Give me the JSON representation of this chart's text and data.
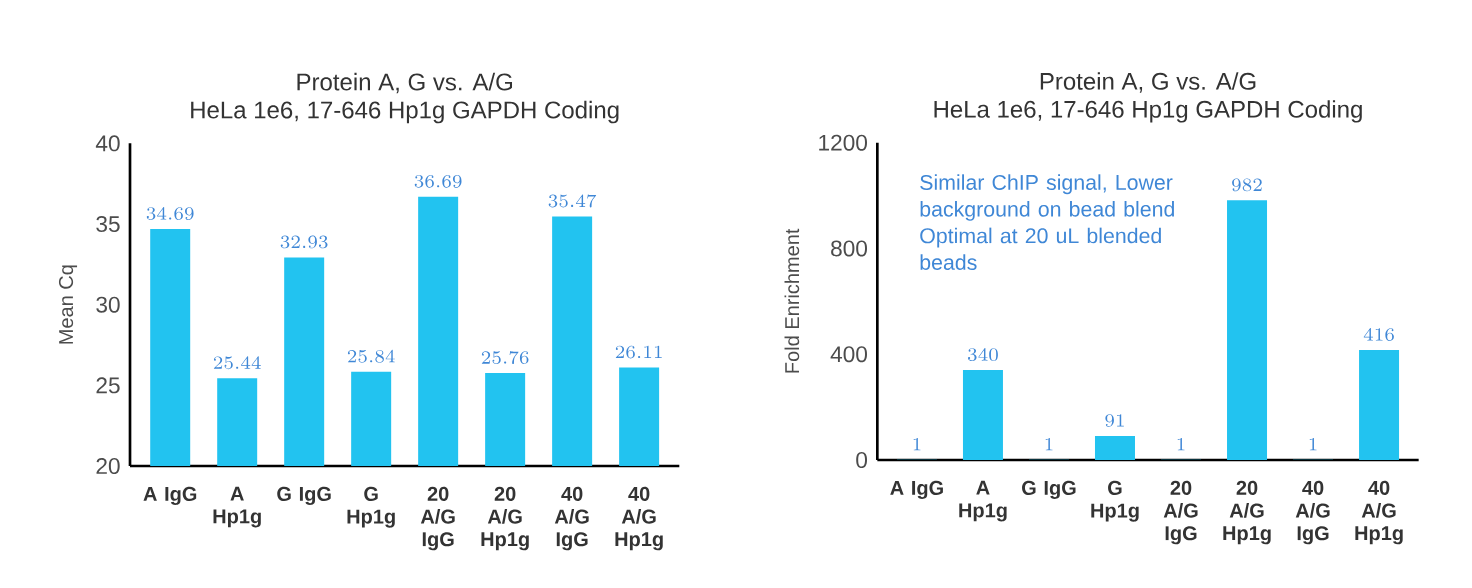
{
  "chart_data": [
    {
      "type": "bar",
      "title": "Protein A, G vs. A/G",
      "subtitle": "HeLa 1e6, 17-646 Hp1g GAPDH Coding",
      "ylabel": "Mean Cq",
      "categories": [
        "A IgG",
        "A Hp1g",
        "G IgG",
        "G Hp1g",
        "20 A/G IgG",
        "20 A/G Hp1g",
        "40 A/G IgG",
        "40 A/G Hp1g"
      ],
      "values": [
        34.69,
        25.44,
        32.93,
        25.84,
        36.69,
        25.76,
        35.47,
        26.11
      ],
      "color": "#22c3f0",
      "ylim": [
        20,
        40
      ],
      "yticks": [
        20,
        25,
        30,
        35,
        40
      ],
      "data_labels": true
    },
    {
      "type": "bar",
      "title": "Protein A, G vs. A/G",
      "subtitle": "HeLa 1e6, 17-646 Hp1g GAPDH Coding",
      "ylabel": "Fold Enrichment",
      "categories": [
        "A IgG",
        "A Hp1g",
        "G IgG",
        "G Hp1g",
        "20 A/G IgG",
        "20 A/G Hp1g",
        "40 A/G IgG",
        "40 A/G Hp1g"
      ],
      "values": [
        1,
        340,
        1,
        91,
        1,
        982,
        1,
        416
      ],
      "color": "#22c3f0",
      "ylim": [
        0,
        1200
      ],
      "yticks": [
        0,
        400,
        800,
        1200
      ],
      "data_labels": true,
      "annotations": [
        "Similar ChIP signal, Lower background on bead blend Optimal at 20 uL blended beads"
      ]
    }
  ]
}
